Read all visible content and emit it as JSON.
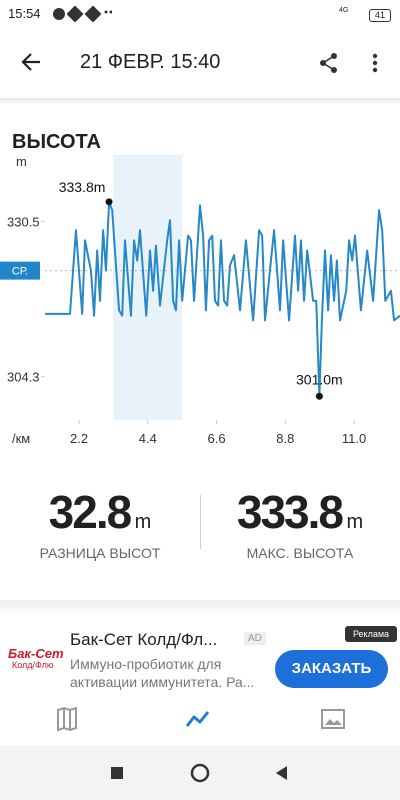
{
  "status_bar": {
    "time": "15:54",
    "network": "4G",
    "battery": "41"
  },
  "header": {
    "title": "21 ФЕВР. 15:40"
  },
  "section_title": "ВЫСОТА",
  "chart_data": {
    "type": "line",
    "y_unit": "m",
    "x_unit": "/км",
    "x": [
      1.11,
      1.91,
      2.1,
      2.3,
      2.39,
      2.58,
      2.68,
      2.78,
      2.87,
      2.97,
      3.06,
      3.16,
      3.26,
      3.48,
      3.58,
      3.67,
      3.86,
      3.96,
      4.06,
      4.15,
      4.35,
      4.47,
      4.57,
      4.66,
      4.79,
      5.02,
      5.11,
      5.21,
      5.3,
      5.4,
      5.5,
      5.69,
      5.78,
      5.88,
      6.07,
      6.17,
      6.26,
      6.36,
      6.46,
      6.55,
      6.65,
      6.74,
      6.84,
      6.94,
      7.03,
      7.16,
      7.35,
      7.54,
      7.77,
      7.96,
      8.06,
      8.15,
      8.34,
      8.44,
      8.63,
      8.73,
      8.92,
      9.11,
      9.21,
      9.3,
      9.4,
      9.5,
      9.69,
      9.79,
      9.89,
      9.97,
      10.07,
      10.17,
      10.26,
      10.36,
      10.45,
      10.55,
      10.75,
      10.84,
      10.94,
      11.03,
      11.22,
      11.42,
      11.61,
      11.8,
      11.9,
      12.0,
      12.18,
      12.28,
      12.47
    ],
    "series": [
      {
        "color": "#2688c6",
        "values": [
          314.9,
          314.9,
          329.0,
          314.9,
          327.3,
          322.2,
          314.6,
          325.6,
          317.1,
          329.0,
          322.2,
          333.8,
          332.4,
          315.5,
          314.6,
          327.3,
          314.6,
          327.3,
          323.9,
          329.0,
          314.6,
          325.6,
          318.8,
          326.4,
          316.3,
          327.3,
          330.7,
          317.1,
          315.5,
          327.3,
          317.1,
          328.1,
          327.3,
          317.1,
          333.2,
          328.1,
          315.5,
          327.3,
          328.1,
          317.1,
          316.3,
          327.3,
          317.1,
          316.3,
          323.1,
          324.8,
          315.5,
          327.3,
          313.8,
          329.0,
          328.1,
          313.8,
          323.9,
          329.0,
          315.5,
          327.3,
          313.8,
          328.1,
          318.8,
          327.3,
          317.1,
          325.6,
          317.1,
          317.1,
          301.0,
          313.8,
          325.6,
          315.5,
          324.8,
          317.1,
          323.9,
          313.8,
          318.8,
          327.3,
          323.9,
          328.1,
          315.5,
          325.6,
          317.1,
          332.4,
          329.0,
          317.1,
          318.8,
          313.8,
          314.6
        ]
      }
    ],
    "xlim": [
      1.11,
      12.47
    ],
    "ylim": [
      297.0,
      341.7
    ],
    "xticks": [
      2.2,
      4.4,
      6.6,
      8.8,
      {
        "value": 11.0,
        "label": "11.0"
      }
    ],
    "yticks": [
      330.5,
      304.3
    ],
    "average": {
      "label": "СР.",
      "value": 322.2
    },
    "highlight_range": [
      3.29,
      5.5
    ],
    "annotations": [
      {
        "label": "333.8m",
        "x": 3.16,
        "value": 333.8
      },
      {
        "label": "301.0m",
        "x": 9.89,
        "value": 301.0
      }
    ]
  },
  "stats": [
    {
      "value": 32.8,
      "unit": "m",
      "label": "РАЗНИЦА ВЫСОТ"
    },
    {
      "value": 333.8,
      "unit": "m",
      "label": "МАКС. ВЫСОТА"
    }
  ],
  "ad": {
    "badge": "Реклама",
    "logo_top": "Бак-Сет",
    "logo_bottom": "Колд/Флю",
    "title": "Бак-Сет Колд/Фл...",
    "ad_label": "AD",
    "text": "Иммуно-пробиотик для активации иммунитета. Ра...",
    "button": "ЗАКАЗАТЬ"
  }
}
